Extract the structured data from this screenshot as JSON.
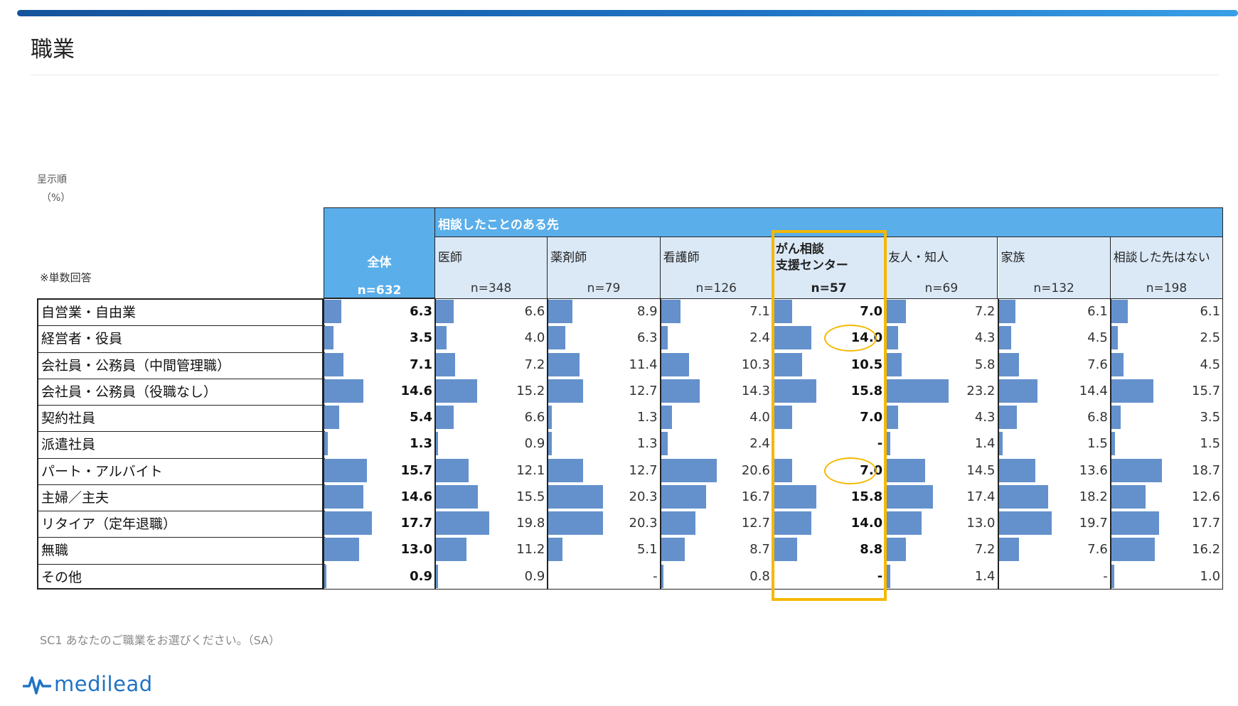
{
  "page": {
    "title": "職業",
    "order_label": "呈示順",
    "unit_label": "（%）",
    "note": "※単数回答",
    "question": "SC1  あなたのご職業をお選びください。（SA）",
    "logo_text": "medilead"
  },
  "colors": {
    "bar": "#6491cc",
    "header_blue": "#5aaeea",
    "sub_header": "#dbe9f7",
    "highlight": "#f5b800",
    "brand": "#1f73c4"
  },
  "chart_data": {
    "type": "table",
    "group_header": "相談したことのある先",
    "total_column": {
      "name": "全体",
      "n": "n=632"
    },
    "columns": [
      {
        "name": "医師",
        "n": "n=348"
      },
      {
        "name": "薬剤師",
        "n": "n=79"
      },
      {
        "name": "看護師",
        "n": "n=126"
      },
      {
        "name": "がん相談\n支援センター",
        "n": "n=57",
        "highlighted": true
      },
      {
        "name": "友人・知人",
        "n": "n=69"
      },
      {
        "name": "家族",
        "n": "n=132"
      },
      {
        "name": "相談した先はない",
        "n": "n=198"
      }
    ],
    "rows": [
      "自営業・自由業",
      "経営者・役員",
      "会社員・公務員（中間管理職）",
      "会社員・公務員（役職なし）",
      "契約社員",
      "派遣社員",
      "パート・アルバイト",
      "主婦／主夫",
      "リタイア（定年退職）",
      "無職",
      "その他"
    ],
    "total_values": [
      "6.3",
      "3.5",
      "7.1",
      "14.6",
      "5.4",
      "1.3",
      "15.7",
      "14.6",
      "17.7",
      "13.0",
      "0.9"
    ],
    "values": [
      [
        "6.6",
        "8.9",
        "7.1",
        "7.0",
        "7.2",
        "6.1",
        "6.1"
      ],
      [
        "4.0",
        "6.3",
        "2.4",
        "14.0",
        "4.3",
        "4.5",
        "2.5"
      ],
      [
        "7.2",
        "11.4",
        "10.3",
        "10.5",
        "5.8",
        "7.6",
        "4.5"
      ],
      [
        "15.2",
        "12.7",
        "14.3",
        "15.8",
        "23.2",
        "14.4",
        "15.7"
      ],
      [
        "6.6",
        "1.3",
        "4.0",
        "7.0",
        "4.3",
        "6.8",
        "3.5"
      ],
      [
        "0.9",
        "1.3",
        "2.4",
        "-",
        "1.4",
        "1.5",
        "1.5"
      ],
      [
        "12.1",
        "12.7",
        "20.6",
        "7.0",
        "14.5",
        "13.6",
        "18.7"
      ],
      [
        "15.5",
        "20.3",
        "16.7",
        "15.8",
        "17.4",
        "18.2",
        "12.6"
      ],
      [
        "19.8",
        "20.3",
        "12.7",
        "14.0",
        "13.0",
        "19.7",
        "17.7"
      ],
      [
        "11.2",
        "5.1",
        "8.7",
        "8.8",
        "7.2",
        "7.6",
        "16.2"
      ],
      [
        "0.9",
        "-",
        "0.8",
        "-",
        "1.4",
        "-",
        "1.0"
      ]
    ],
    "circled_cells": [
      {
        "row": 1,
        "col": 3
      },
      {
        "row": 6,
        "col": 3
      }
    ]
  }
}
